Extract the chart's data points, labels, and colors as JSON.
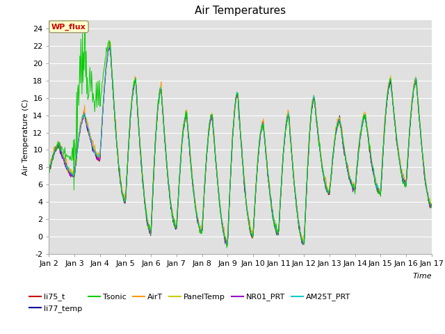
{
  "title": "Air Temperatures",
  "xlabel": "Time",
  "ylabel": "Air Temperature (C)",
  "ylim": [
    -2,
    25
  ],
  "yticks": [
    -2,
    0,
    2,
    4,
    6,
    8,
    10,
    12,
    14,
    16,
    18,
    20,
    22,
    24
  ],
  "x_tick_labels": [
    "Jan 2",
    "Jan 3",
    "Jan 4",
    "Jan 5",
    "Jan 6",
    "Jan 7",
    "Jan 8",
    "Jan 9",
    "Jan 10",
    "Jan 11",
    "Jan 12",
    "Jan 13",
    "Jan 14",
    "Jan 15",
    "Jan 16",
    "Jan 17"
  ],
  "series_colors": {
    "li75_t": "#cc0000",
    "li77_temp": "#000099",
    "Tsonic": "#00cc00",
    "AirT": "#ff9900",
    "PanelTemp": "#cccc00",
    "NR01_PRT": "#9900cc",
    "AM25T_PRT": "#00cccc"
  },
  "plot_bg": "#e0e0e0",
  "grid_color": "#ffffff",
  "annotation_text": "WP_flux",
  "annotation_bg": "#ffffcc",
  "annotation_edge": "#999966",
  "annotation_text_color": "#cc0000",
  "title_fontsize": 11,
  "label_fontsize": 8,
  "tick_fontsize": 8,
  "legend_fontsize": 8,
  "day_data": [
    [
      2.0,
      7.5,
      10.5,
      7.5
    ],
    [
      3.0,
      7.0,
      14.0,
      9.0
    ],
    [
      4.0,
      9.0,
      22.0,
      4.5
    ],
    [
      5.0,
      4.0,
      18.0,
      0.5
    ],
    [
      6.0,
      0.5,
      17.0,
      1.0
    ],
    [
      7.0,
      1.0,
      14.0,
      0.5
    ],
    [
      8.0,
      0.5,
      14.0,
      -0.5
    ],
    [
      9.0,
      -0.8,
      16.5,
      0.0
    ],
    [
      10.0,
      0.0,
      13.0,
      0.3
    ],
    [
      11.0,
      0.3,
      14.0,
      -0.8
    ],
    [
      12.0,
      -0.8,
      16.0,
      5.0
    ],
    [
      13.0,
      5.0,
      13.5,
      5.5
    ],
    [
      14.0,
      5.5,
      14.0,
      5.0
    ],
    [
      15.0,
      5.0,
      18.0,
      6.0
    ],
    [
      16.0,
      6.0,
      18.0,
      3.5
    ],
    [
      17.0,
      3.5,
      6.0,
      3.5
    ]
  ],
  "tsonic_day_data": [
    [
      2.0,
      7.5,
      10.5,
      7.5
    ],
    [
      3.0,
      9.0,
      21.0,
      15.0
    ],
    [
      4.0,
      15.0,
      22.5,
      4.5
    ],
    [
      5.0,
      4.0,
      18.0,
      0.5
    ],
    [
      6.0,
      0.5,
      17.0,
      1.0
    ],
    [
      7.0,
      1.0,
      14.0,
      0.5
    ],
    [
      8.0,
      0.5,
      14.0,
      -0.5
    ],
    [
      9.0,
      -0.8,
      16.5,
      0.0
    ],
    [
      10.0,
      0.0,
      13.0,
      0.3
    ],
    [
      11.0,
      0.3,
      14.0,
      -0.8
    ],
    [
      12.0,
      -0.8,
      16.0,
      5.0
    ],
    [
      13.0,
      5.0,
      13.5,
      5.5
    ],
    [
      14.0,
      5.5,
      14.0,
      5.0
    ],
    [
      15.0,
      5.0,
      18.0,
      6.0
    ],
    [
      16.0,
      6.0,
      18.0,
      3.5
    ],
    [
      17.0,
      3.5,
      6.0,
      3.5
    ]
  ]
}
